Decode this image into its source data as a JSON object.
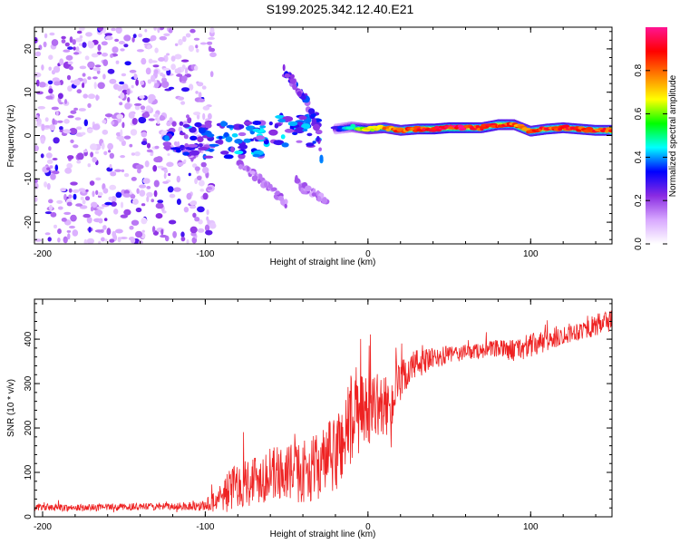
{
  "title": "S199.2025.342.12.40.E21",
  "chart_data": [
    {
      "type": "heatmap",
      "title": "S199.2025.342.12.40.E21",
      "xlabel": "Height of straight line (km)",
      "ylabel": "Frequency (Hz)",
      "xlim": [
        -205,
        150
      ],
      "ylim": [
        -25,
        25
      ],
      "xticks": [
        -200,
        -100,
        0,
        100
      ],
      "yticks": [
        -20,
        -10,
        0,
        10,
        20
      ],
      "colorbar": {
        "label": "Normalized spectral amplitude",
        "range": [
          0,
          1
        ],
        "ticks": [
          0.0,
          0.2,
          0.4,
          0.6,
          0.8
        ],
        "colors": [
          "#ffffff",
          "#d8a8ff",
          "#8a2be2",
          "#0000ff",
          "#00ffff",
          "#00ff00",
          "#ffff00",
          "#ff8000",
          "#ff0000",
          "#ff1493"
        ]
      },
      "features": {
        "noise_region_x": [
          -205,
          -95
        ],
        "dominant_band": {
          "x": [
            -20,
            -10,
            0,
            10,
            20,
            30,
            40,
            50,
            60,
            70,
            80,
            90,
            100,
            110,
            120,
            130,
            140,
            150
          ],
          "freq": [
            1.5,
            2,
            1.5,
            1.8,
            1.2,
            1.5,
            1.5,
            1.8,
            1.8,
            1.8,
            2.5,
            2.5,
            1,
            1.5,
            1.8,
            1.5,
            1.2,
            1.2
          ],
          "amplitude": [
            0.3,
            0.5,
            0.7,
            0.8,
            0.85,
            0.9,
            0.95,
            0.95,
            0.95,
            0.9,
            0.9,
            0.85,
            0.85,
            0.9,
            0.9,
            0.9,
            0.9,
            0.9
          ]
        },
        "descending_streak": {
          "x": [
            -52,
            -45,
            -38,
            -32,
            -28
          ],
          "freq": [
            15,
            12,
            8,
            3,
            -7
          ]
        },
        "secondary_streak": {
          "x": [
            -80,
            -70,
            -60,
            -50
          ],
          "freq": [
            -6,
            -9,
            -12,
            -16
          ]
        },
        "tail_streak": {
          "x": [
            -45,
            -40,
            -35,
            -30,
            -25
          ],
          "freq": [
            -10,
            -12,
            -13,
            -14,
            -15
          ]
        }
      }
    },
    {
      "type": "line",
      "xlabel": "Height of straight line (km)",
      "ylabel": "SNR (10 * v/v)",
      "xlim": [
        -205,
        150
      ],
      "ylim": [
        0,
        490
      ],
      "xticks": [
        -200,
        -100,
        0,
        100
      ],
      "yticks": [
        0,
        100,
        200,
        300,
        400
      ],
      "series": [
        {
          "name": "SNR",
          "color": "#ee2222",
          "x": [
            -205,
            -180,
            -150,
            -120,
            -100,
            -90,
            -80,
            -70,
            -60,
            -50,
            -40,
            -30,
            -20,
            -15,
            -10,
            -5,
            0,
            5,
            10,
            15,
            20,
            25,
            30,
            40,
            50,
            60,
            70,
            80,
            90,
            100,
            110,
            120,
            130,
            140,
            150
          ],
          "values": [
            22,
            20,
            22,
            23,
            25,
            45,
            75,
            85,
            95,
            100,
            100,
            115,
            140,
            180,
            220,
            230,
            240,
            255,
            245,
            260,
            300,
            330,
            345,
            355,
            365,
            370,
            375,
            378,
            375,
            385,
            395,
            410,
            420,
            430,
            445
          ],
          "noise_amplitude": [
            8,
            8,
            8,
            8,
            12,
            40,
            55,
            60,
            60,
            65,
            70,
            75,
            90,
            110,
            110,
            90,
            80,
            70,
            70,
            60,
            50,
            40,
            35,
            25,
            20,
            18,
            18,
            20,
            25,
            28,
            25,
            22,
            22,
            25,
            28
          ]
        }
      ]
    }
  ]
}
